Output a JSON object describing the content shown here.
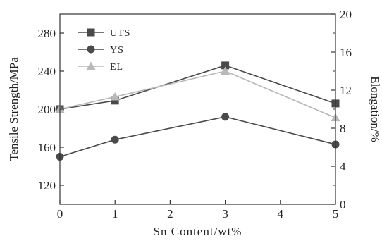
{
  "chart_data": {
    "type": "line",
    "x": [
      0,
      1,
      3,
      5
    ],
    "xlabel": "Sn Content/wt%",
    "ylabel": "Tensile Strength/MPa",
    "y2label": "Elongation/%",
    "xlim": [
      0,
      5
    ],
    "ylim": [
      100,
      300
    ],
    "y2lim": [
      0,
      20
    ],
    "xticks": [
      "0",
      "1",
      "2",
      "3",
      "4",
      "5"
    ],
    "yticks": [
      "120",
      "160",
      "200",
      "240",
      "280"
    ],
    "y2ticks": [
      "0",
      "4",
      "8",
      "12",
      "16",
      "20"
    ],
    "grid": false,
    "legend_position": "top-left",
    "series": [
      {
        "name": "UTS",
        "axis": "left",
        "marker": "square",
        "color": "#4a4a4a",
        "values": [
          200,
          209,
          246,
          206
        ]
      },
      {
        "name": "YS",
        "axis": "left",
        "marker": "circle",
        "color": "#4a4a4a",
        "values": [
          150,
          168,
          192,
          163
        ]
      },
      {
        "name": "EL",
        "axis": "right",
        "marker": "triangle",
        "color": "#b8b8b8",
        "values": [
          10,
          11.3,
          14,
          9.1
        ]
      }
    ]
  }
}
